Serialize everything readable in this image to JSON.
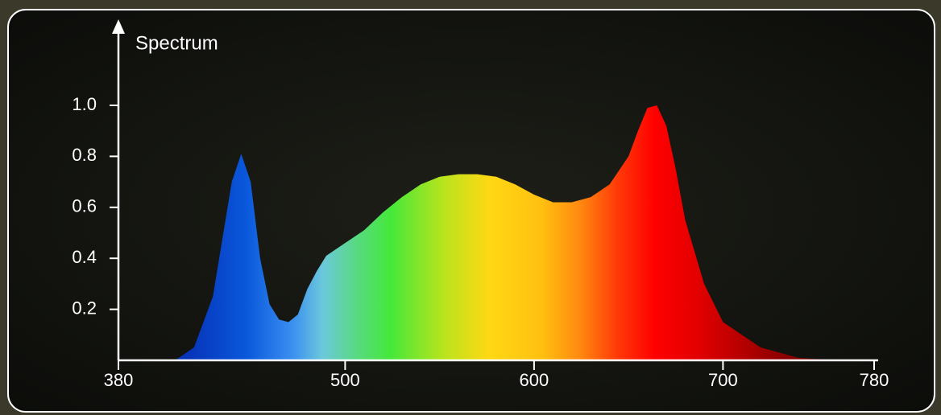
{
  "chart_data": {
    "type": "area",
    "title": "Spectrum",
    "x": [
      380,
      410,
      420,
      430,
      440,
      445,
      450,
      455,
      460,
      465,
      470,
      475,
      480,
      485,
      490,
      500,
      510,
      520,
      530,
      540,
      550,
      560,
      570,
      580,
      590,
      600,
      610,
      620,
      630,
      640,
      650,
      655,
      660,
      665,
      670,
      675,
      680,
      690,
      700,
      720,
      740,
      760,
      780
    ],
    "y": [
      0,
      0,
      0.05,
      0.25,
      0.7,
      0.81,
      0.7,
      0.4,
      0.22,
      0.16,
      0.15,
      0.18,
      0.28,
      0.35,
      0.41,
      0.46,
      0.51,
      0.58,
      0.64,
      0.69,
      0.72,
      0.73,
      0.73,
      0.72,
      0.69,
      0.65,
      0.62,
      0.62,
      0.64,
      0.69,
      0.8,
      0.9,
      0.99,
      1.0,
      0.92,
      0.75,
      0.55,
      0.3,
      0.15,
      0.05,
      0.01,
      0,
      0
    ],
    "xlim": [
      380,
      780
    ],
    "xticks": [
      380,
      500,
      600,
      700,
      780
    ],
    "ylim": [
      0,
      1
    ],
    "yticks": [
      0.2,
      0.4,
      0.6,
      0.8,
      {
        "value": 1,
        "label": "1.0"
      }
    ]
  }
}
